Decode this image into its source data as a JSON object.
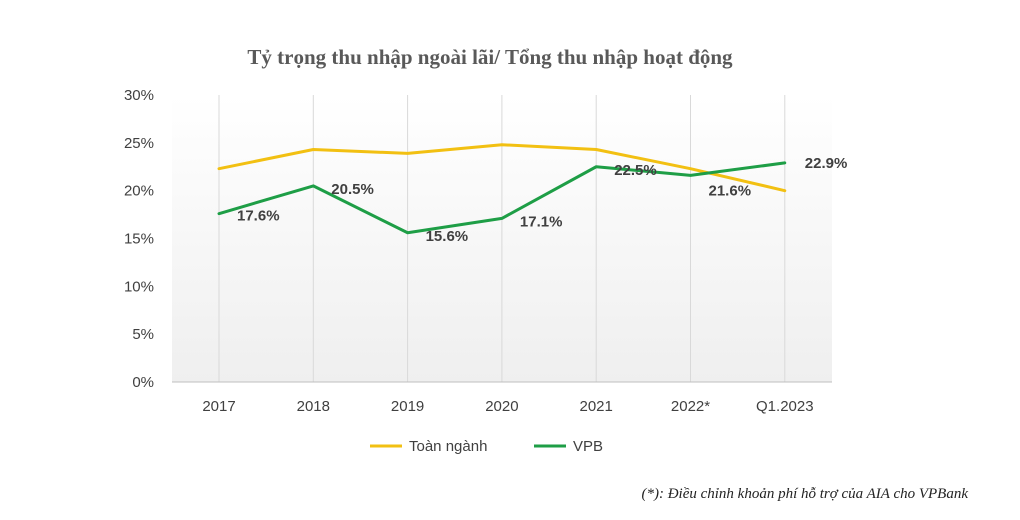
{
  "chart_data": {
    "type": "line",
    "title": "Tỷ trọng thu nhập ngoài lãi/ Tổng thu nhập hoạt động",
    "categories": [
      "2017",
      "2018",
      "2019",
      "2020",
      "2021",
      "2022*",
      "Q1.2023"
    ],
    "ylim": [
      0,
      30
    ],
    "yticks": [
      0,
      5,
      10,
      15,
      20,
      25,
      30
    ],
    "ytick_labels": [
      "0%",
      "5%",
      "10%",
      "15%",
      "20%",
      "25%",
      "30%"
    ],
    "xlabel": "",
    "ylabel": "",
    "grid": "vertical",
    "legend_position": "bottom",
    "series": [
      {
        "name": "Toàn ngành",
        "color": "#f2c012",
        "values": [
          22.3,
          24.3,
          23.9,
          24.8,
          24.3,
          22.3,
          20.0
        ],
        "labels": [
          "",
          "",
          "",
          "",
          "",
          "",
          ""
        ]
      },
      {
        "name": "VPB",
        "color": "#1e9e46",
        "values": [
          17.6,
          20.5,
          15.6,
          17.1,
          22.5,
          21.6,
          22.9
        ],
        "labels": [
          "17.6%",
          "20.5%",
          "15.6%",
          "17.1%",
          "22.5%",
          "21.6%",
          "22.9%"
        ]
      }
    ],
    "footnote": "(*): Điều chỉnh khoản phí hỗ trợ của AIA cho VPBank"
  }
}
